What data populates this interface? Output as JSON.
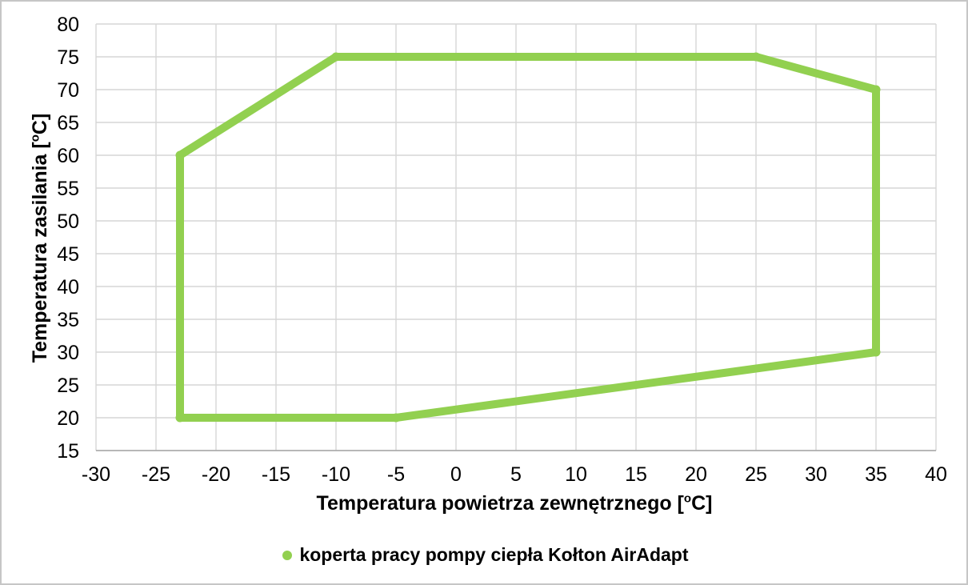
{
  "chart_data": {
    "type": "line",
    "title": "",
    "xlabel": {
      "text": "Temperatura powietrza zewnętrznego [",
      "sup": "o",
      "after": "C]"
    },
    "ylabel": {
      "text": "Temperatura zasilania [",
      "sup": "o",
      "after": "C]"
    },
    "xlim": [
      -30,
      40
    ],
    "ylim": [
      15,
      80
    ],
    "x_ticks": [
      -30,
      -25,
      -20,
      -15,
      -10,
      -5,
      0,
      5,
      10,
      15,
      20,
      25,
      30,
      35,
      40
    ],
    "y_ticks": [
      15,
      20,
      25,
      30,
      35,
      40,
      45,
      50,
      55,
      60,
      65,
      70,
      75,
      80
    ],
    "grid": true,
    "legend": {
      "label": "koperta pracy pompy ciepła Kołton AirAdapt",
      "position": "bottom-center"
    },
    "series": [
      {
        "name": "koperta pracy pompy ciepła Kołton AirAdapt",
        "color": "#92D050",
        "line_width": 10,
        "marker": "circle",
        "points": [
          [
            -23,
            20
          ],
          [
            -23,
            60
          ],
          [
            -10,
            75
          ],
          [
            25,
            75
          ],
          [
            35,
            70
          ],
          [
            35,
            30
          ],
          [
            -5,
            20
          ],
          [
            -23,
            20
          ]
        ]
      }
    ]
  },
  "colors": {
    "line": "#92D050",
    "grid": "#d6d6d6",
    "axis": "#a6a6a6",
    "text": "#000000",
    "canvas_border": "#c6c6c6"
  }
}
